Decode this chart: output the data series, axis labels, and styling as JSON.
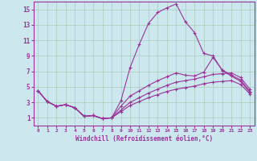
{
  "xlabel": "Windchill (Refroidissement éolien,°C)",
  "bg_color": "#cce8ee",
  "grid_color": "#aaccbb",
  "line_color": "#993399",
  "spine_color": "#993399",
  "xlim": [
    -0.5,
    23.5
  ],
  "ylim": [
    0,
    16
  ],
  "xticks": [
    0,
    1,
    2,
    3,
    4,
    5,
    6,
    7,
    8,
    9,
    10,
    11,
    12,
    13,
    14,
    15,
    16,
    17,
    18,
    19,
    20,
    21,
    22,
    23
  ],
  "yticks": [
    1,
    3,
    5,
    7,
    9,
    11,
    13,
    15
  ],
  "line1_x": [
    0,
    1,
    2,
    3,
    4,
    5,
    6,
    7,
    8,
    9,
    10,
    11,
    12,
    13,
    14,
    15,
    16,
    17,
    18,
    19,
    20,
    21,
    22,
    23
  ],
  "line1_y": [
    4.5,
    3.1,
    2.5,
    2.7,
    2.3,
    1.2,
    1.3,
    0.9,
    1.0,
    3.2,
    7.5,
    10.5,
    13.2,
    14.6,
    15.2,
    15.7,
    13.4,
    12.0,
    9.3,
    9.0,
    7.1,
    6.4,
    5.7,
    4.3
  ],
  "line2_x": [
    0,
    1,
    2,
    3,
    4,
    5,
    6,
    7,
    8,
    9,
    10,
    11,
    12,
    13,
    14,
    15,
    16,
    17,
    18,
    19,
    20,
    21,
    22,
    23
  ],
  "line2_y": [
    4.5,
    3.1,
    2.5,
    2.7,
    2.3,
    1.2,
    1.3,
    0.9,
    1.0,
    2.5,
    3.8,
    4.5,
    5.2,
    5.8,
    6.3,
    6.8,
    6.5,
    6.4,
    6.9,
    8.8,
    7.2,
    6.5,
    5.9,
    4.4
  ],
  "line3_x": [
    0,
    1,
    2,
    3,
    4,
    5,
    6,
    7,
    8,
    9,
    10,
    11,
    12,
    13,
    14,
    15,
    16,
    17,
    18,
    19,
    20,
    21,
    22,
    23
  ],
  "line3_y": [
    4.5,
    3.1,
    2.5,
    2.7,
    2.3,
    1.2,
    1.3,
    0.9,
    1.0,
    2.0,
    3.0,
    3.6,
    4.2,
    4.7,
    5.2,
    5.6,
    5.8,
    6.0,
    6.3,
    6.6,
    6.7,
    6.8,
    6.2,
    4.7
  ],
  "line4_x": [
    0,
    1,
    2,
    3,
    4,
    5,
    6,
    7,
    8,
    9,
    10,
    11,
    12,
    13,
    14,
    15,
    16,
    17,
    18,
    19,
    20,
    21,
    22,
    23
  ],
  "line4_y": [
    4.5,
    3.1,
    2.5,
    2.7,
    2.3,
    1.2,
    1.3,
    0.9,
    1.0,
    1.8,
    2.6,
    3.1,
    3.6,
    4.0,
    4.4,
    4.7,
    4.9,
    5.1,
    5.4,
    5.6,
    5.7,
    5.8,
    5.3,
    4.1
  ]
}
